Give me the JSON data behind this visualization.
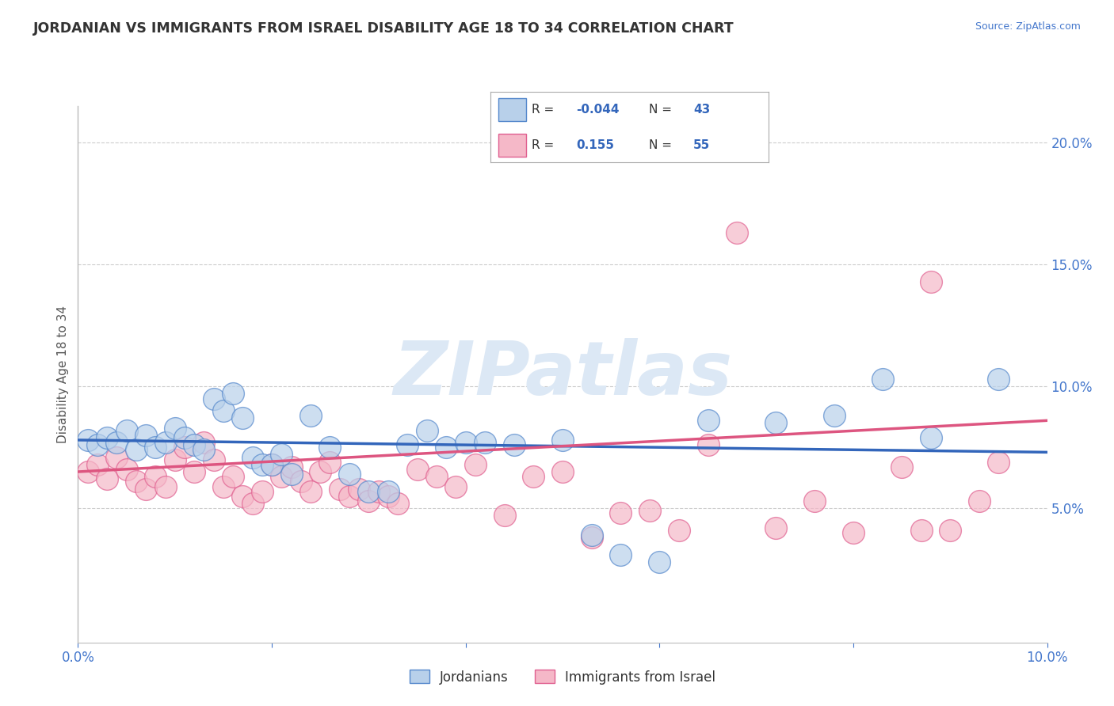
{
  "title": "JORDANIAN VS IMMIGRANTS FROM ISRAEL DISABILITY AGE 18 TO 34 CORRELATION CHART",
  "source": "Source: ZipAtlas.com",
  "ylabel": "Disability Age 18 to 34",
  "xlim": [
    0.0,
    0.1
  ],
  "ylim": [
    -0.005,
    0.215
  ],
  "xticks": [
    0.0,
    0.02,
    0.04,
    0.06,
    0.08,
    0.1
  ],
  "xtick_labels": [
    "0.0%",
    "",
    "",
    "",
    "",
    "10.0%"
  ],
  "yticks": [
    0.05,
    0.1,
    0.15,
    0.2
  ],
  "ytick_labels": [
    "5.0%",
    "10.0%",
    "15.0%",
    "20.0%"
  ],
  "blue_R": -0.044,
  "blue_N": 43,
  "pink_R": 0.155,
  "pink_N": 55,
  "blue_color": "#b8d0ea",
  "pink_color": "#f5b8c8",
  "blue_edge_color": "#5588cc",
  "pink_edge_color": "#e06090",
  "blue_line_color": "#3366bb",
  "pink_line_color": "#dd5580",
  "blue_label": "Jordanians",
  "pink_label": "Immigrants from Israel",
  "watermark": "ZIPatlas",
  "watermark_color": "#dce8f5",
  "background_color": "#ffffff",
  "grid_color": "#cccccc",
  "title_color": "#333333",
  "blue_trend_x0": 0.0,
  "blue_trend_y0": 0.078,
  "blue_trend_x1": 0.1,
  "blue_trend_y1": 0.073,
  "pink_trend_x0": 0.0,
  "pink_trend_y0": 0.065,
  "pink_trend_x1": 0.1,
  "pink_trend_y1": 0.086,
  "blue_x": [
    0.001,
    0.002,
    0.003,
    0.004,
    0.005,
    0.006,
    0.007,
    0.008,
    0.009,
    0.01,
    0.011,
    0.012,
    0.013,
    0.014,
    0.015,
    0.016,
    0.017,
    0.018,
    0.019,
    0.02,
    0.021,
    0.022,
    0.024,
    0.026,
    0.028,
    0.03,
    0.032,
    0.034,
    0.036,
    0.038,
    0.04,
    0.042,
    0.045,
    0.05,
    0.053,
    0.056,
    0.06,
    0.065,
    0.072,
    0.078,
    0.083,
    0.088,
    0.095
  ],
  "blue_y": [
    0.078,
    0.076,
    0.079,
    0.077,
    0.082,
    0.074,
    0.08,
    0.075,
    0.077,
    0.083,
    0.079,
    0.076,
    0.074,
    0.095,
    0.09,
    0.097,
    0.087,
    0.071,
    0.068,
    0.068,
    0.072,
    0.064,
    0.088,
    0.075,
    0.064,
    0.057,
    0.057,
    0.076,
    0.082,
    0.075,
    0.077,
    0.077,
    0.076,
    0.078,
    0.039,
    0.031,
    0.028,
    0.086,
    0.085,
    0.088,
    0.103,
    0.079,
    0.103
  ],
  "pink_x": [
    0.001,
    0.002,
    0.003,
    0.004,
    0.005,
    0.006,
    0.007,
    0.008,
    0.009,
    0.01,
    0.011,
    0.012,
    0.013,
    0.014,
    0.015,
    0.016,
    0.017,
    0.018,
    0.019,
    0.02,
    0.021,
    0.022,
    0.023,
    0.024,
    0.025,
    0.026,
    0.027,
    0.028,
    0.029,
    0.03,
    0.031,
    0.032,
    0.033,
    0.035,
    0.037,
    0.039,
    0.041,
    0.044,
    0.047,
    0.05,
    0.053,
    0.056,
    0.059,
    0.062,
    0.065,
    0.068,
    0.072,
    0.076,
    0.08,
    0.085,
    0.087,
    0.088,
    0.09,
    0.093,
    0.095
  ],
  "pink_y": [
    0.065,
    0.068,
    0.062,
    0.071,
    0.066,
    0.061,
    0.058,
    0.063,
    0.059,
    0.07,
    0.075,
    0.065,
    0.077,
    0.07,
    0.059,
    0.063,
    0.055,
    0.052,
    0.057,
    0.068,
    0.063,
    0.067,
    0.061,
    0.057,
    0.065,
    0.069,
    0.058,
    0.055,
    0.058,
    0.053,
    0.057,
    0.055,
    0.052,
    0.066,
    0.063,
    0.059,
    0.068,
    0.047,
    0.063,
    0.065,
    0.038,
    0.048,
    0.049,
    0.041,
    0.076,
    0.163,
    0.042,
    0.053,
    0.04,
    0.067,
    0.041,
    0.143,
    0.041,
    0.053,
    0.069
  ]
}
